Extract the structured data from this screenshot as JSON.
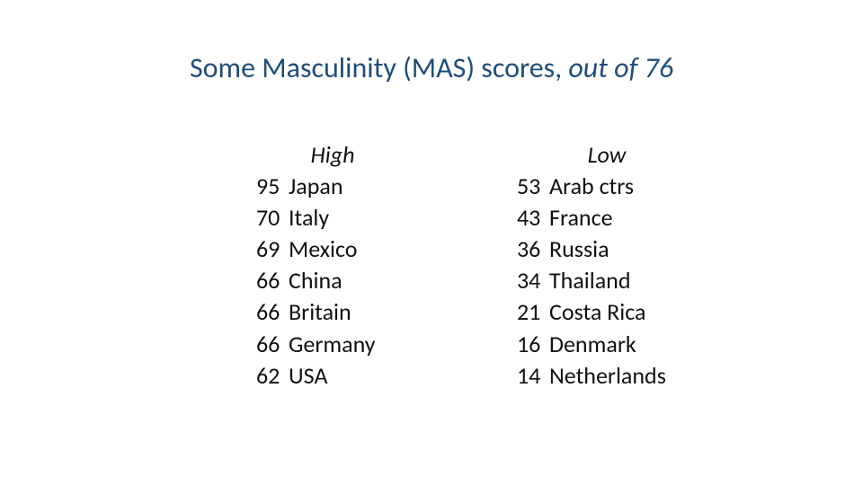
{
  "title": {
    "prefix": "Some Masculinity (MAS) scores, ",
    "suffix_italic": "out of 76",
    "color": "#1f4e79",
    "fontsize": 32
  },
  "body": {
    "fontsize": 26,
    "text_color": "#111111",
    "background_color": "#ffffff"
  },
  "columns": [
    {
      "header": "High",
      "rows": [
        {
          "score": 95,
          "country": "Japan"
        },
        {
          "score": 70,
          "country": "Italy"
        },
        {
          "score": 69,
          "country": "Mexico"
        },
        {
          "score": 66,
          "country": "China"
        },
        {
          "score": 66,
          "country": "Britain"
        },
        {
          "score": 66,
          "country": "Germany"
        },
        {
          "score": 62,
          "country": "USA"
        }
      ]
    },
    {
      "header": "Low",
      "rows": [
        {
          "score": 53,
          "country": "Arab ctrs"
        },
        {
          "score": 43,
          "country": "France"
        },
        {
          "score": 36,
          "country": "Russia"
        },
        {
          "score": 34,
          "country": "Thailand"
        },
        {
          "score": 21,
          "country": "Costa Rica"
        },
        {
          "score": 16,
          "country": "Denmark"
        },
        {
          "score": 14,
          "country": "Netherlands"
        }
      ]
    }
  ]
}
